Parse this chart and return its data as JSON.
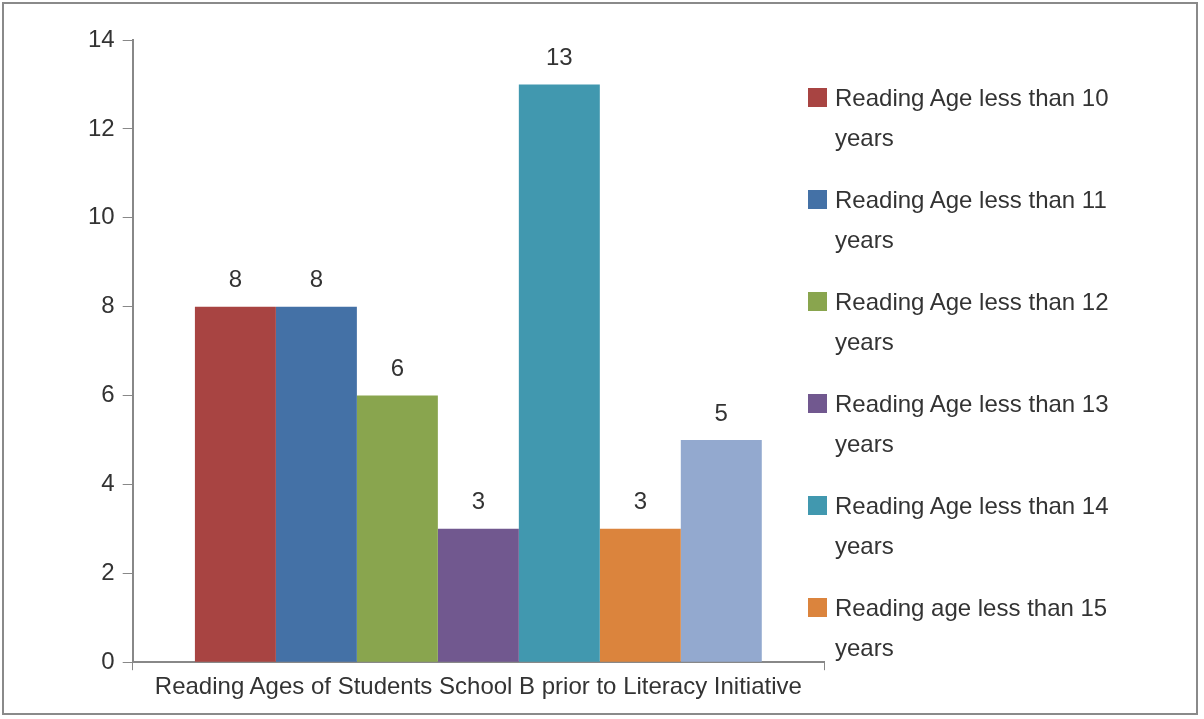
{
  "chart_data": {
    "type": "bar",
    "categories": [
      "Reading Ages of Students School B prior to Literacy Initiative"
    ],
    "series": [
      {
        "name": "Reading Age less than 10 years",
        "color": "#a84442",
        "values": [
          8
        ]
      },
      {
        "name": "Reading Age less than 11 years",
        "color": "#4471a6",
        "values": [
          8
        ]
      },
      {
        "name": "Reading Age less than 12 years",
        "color": "#89a54e",
        "values": [
          6
        ]
      },
      {
        "name": "Reading Age less than 13 years",
        "color": "#71588f",
        "values": [
          3
        ]
      },
      {
        "name": "Reading Age less than 14 years",
        "color": "#4198af",
        "values": [
          13
        ]
      },
      {
        "name": "Reading age less than 15 years",
        "color": "#db843d",
        "values": [
          3
        ]
      },
      {
        "color": "#93a9cf",
        "values": [
          5
        ]
      }
    ],
    "ylim": [
      0,
      14
    ],
    "yticks": [
      0,
      2,
      4,
      6,
      8,
      10,
      12,
      14
    ],
    "grid": false,
    "legend": "right",
    "data_labels": true
  }
}
